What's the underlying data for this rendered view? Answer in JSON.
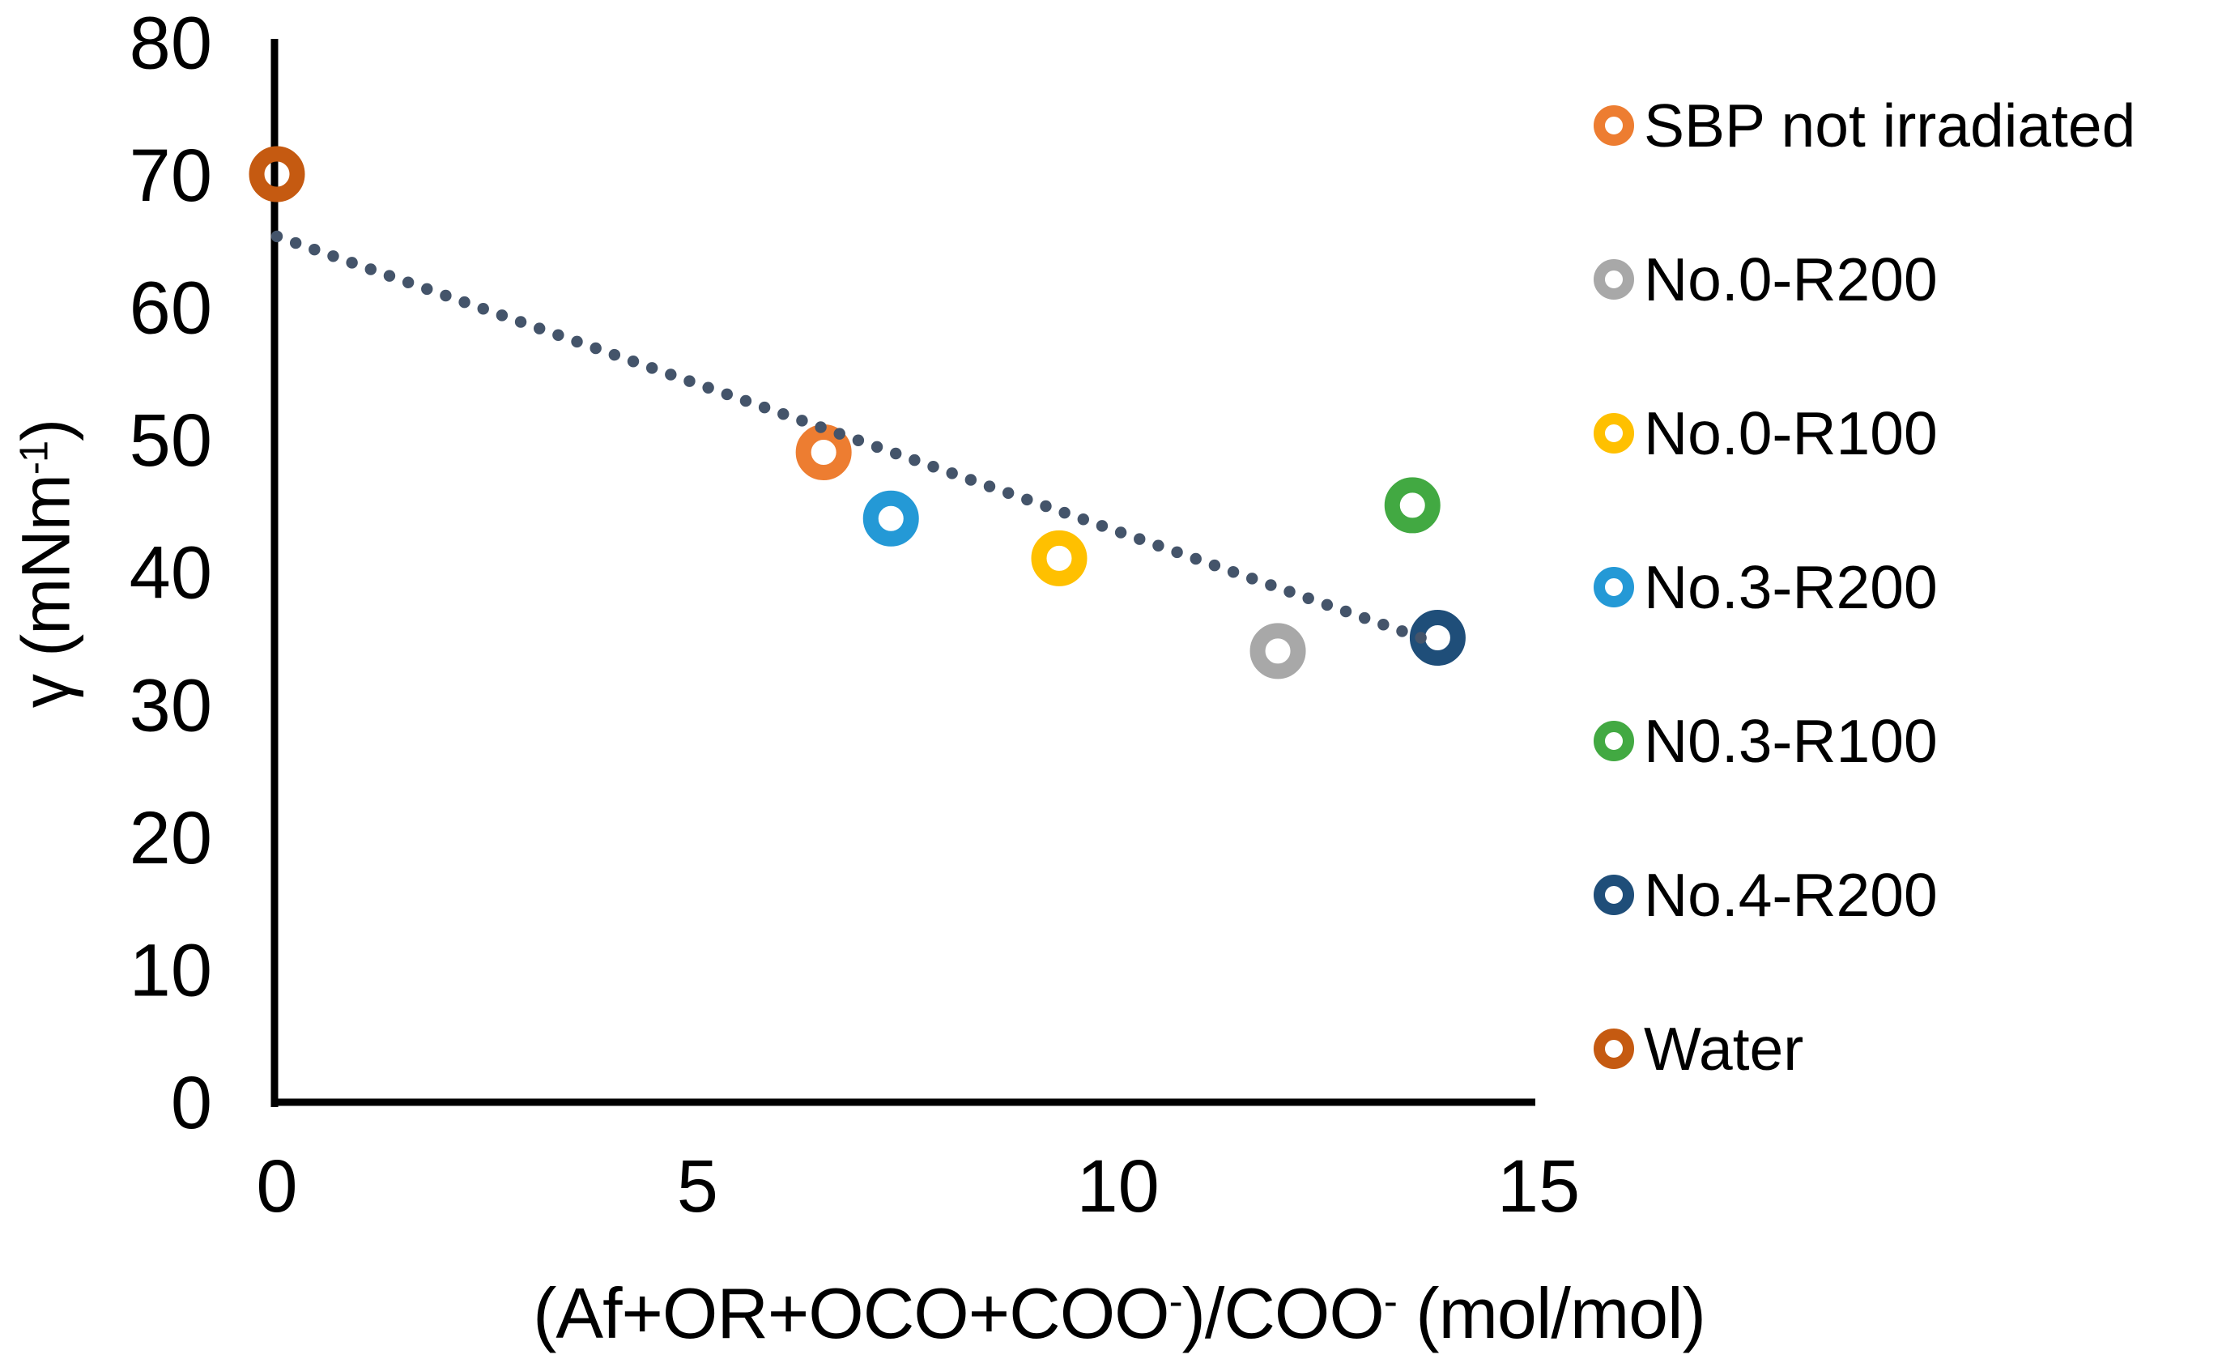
{
  "chart_data": {
    "type": "scatter",
    "title": "",
    "xlabel": "(Af+OR+OCO+COO-)/COO- (mol/mol)",
    "ylabel": "γ (mNm-1)",
    "xlabel_parts": {
      "p1": "(Af+OR+OCO+COO",
      "sup1": "-",
      "p2": ")/COO",
      "sup2": "-",
      "p3": " (mol/mol)"
    },
    "ylabel_parts": {
      "pre": "γ (mNm",
      "sup": "-1",
      "post": ")"
    },
    "xlim": [
      0,
      15
    ],
    "ylim": [
      0,
      80
    ],
    "x_ticks": [
      0,
      5,
      10,
      15
    ],
    "y_ticks": [
      0,
      10,
      20,
      30,
      40,
      50,
      60,
      70,
      80
    ],
    "grid": false,
    "legend_position": "right",
    "marker_style": "open-circle",
    "series": [
      {
        "name": "SBP not irradiated",
        "color": "#ED7D31",
        "points": [
          [
            6.5,
            49
          ]
        ]
      },
      {
        "name": "No.0-R200",
        "color": "#A8A8A8",
        "points": [
          [
            11.9,
            34
          ]
        ]
      },
      {
        "name": "No.0-R100",
        "color": "#FFC000",
        "points": [
          [
            9.3,
            41
          ]
        ]
      },
      {
        "name": "No.3-R200",
        "color": "#2499D6",
        "points": [
          [
            7.3,
            44
          ]
        ]
      },
      {
        "name": "N0.3-R100",
        "color": "#42A942",
        "points": [
          [
            13.5,
            45
          ]
        ]
      },
      {
        "name": "No.4-R200",
        "color": "#1F4E79",
        "points": [
          [
            13.8,
            35
          ]
        ]
      },
      {
        "name": "Water",
        "color": "#C55A11",
        "points": [
          [
            0,
            70
          ]
        ]
      }
    ],
    "trendline": {
      "style": "dotted",
      "color": "#44546A",
      "x1": 0,
      "y1": 65.3,
      "x2": 13.6,
      "y2": 35
    }
  }
}
